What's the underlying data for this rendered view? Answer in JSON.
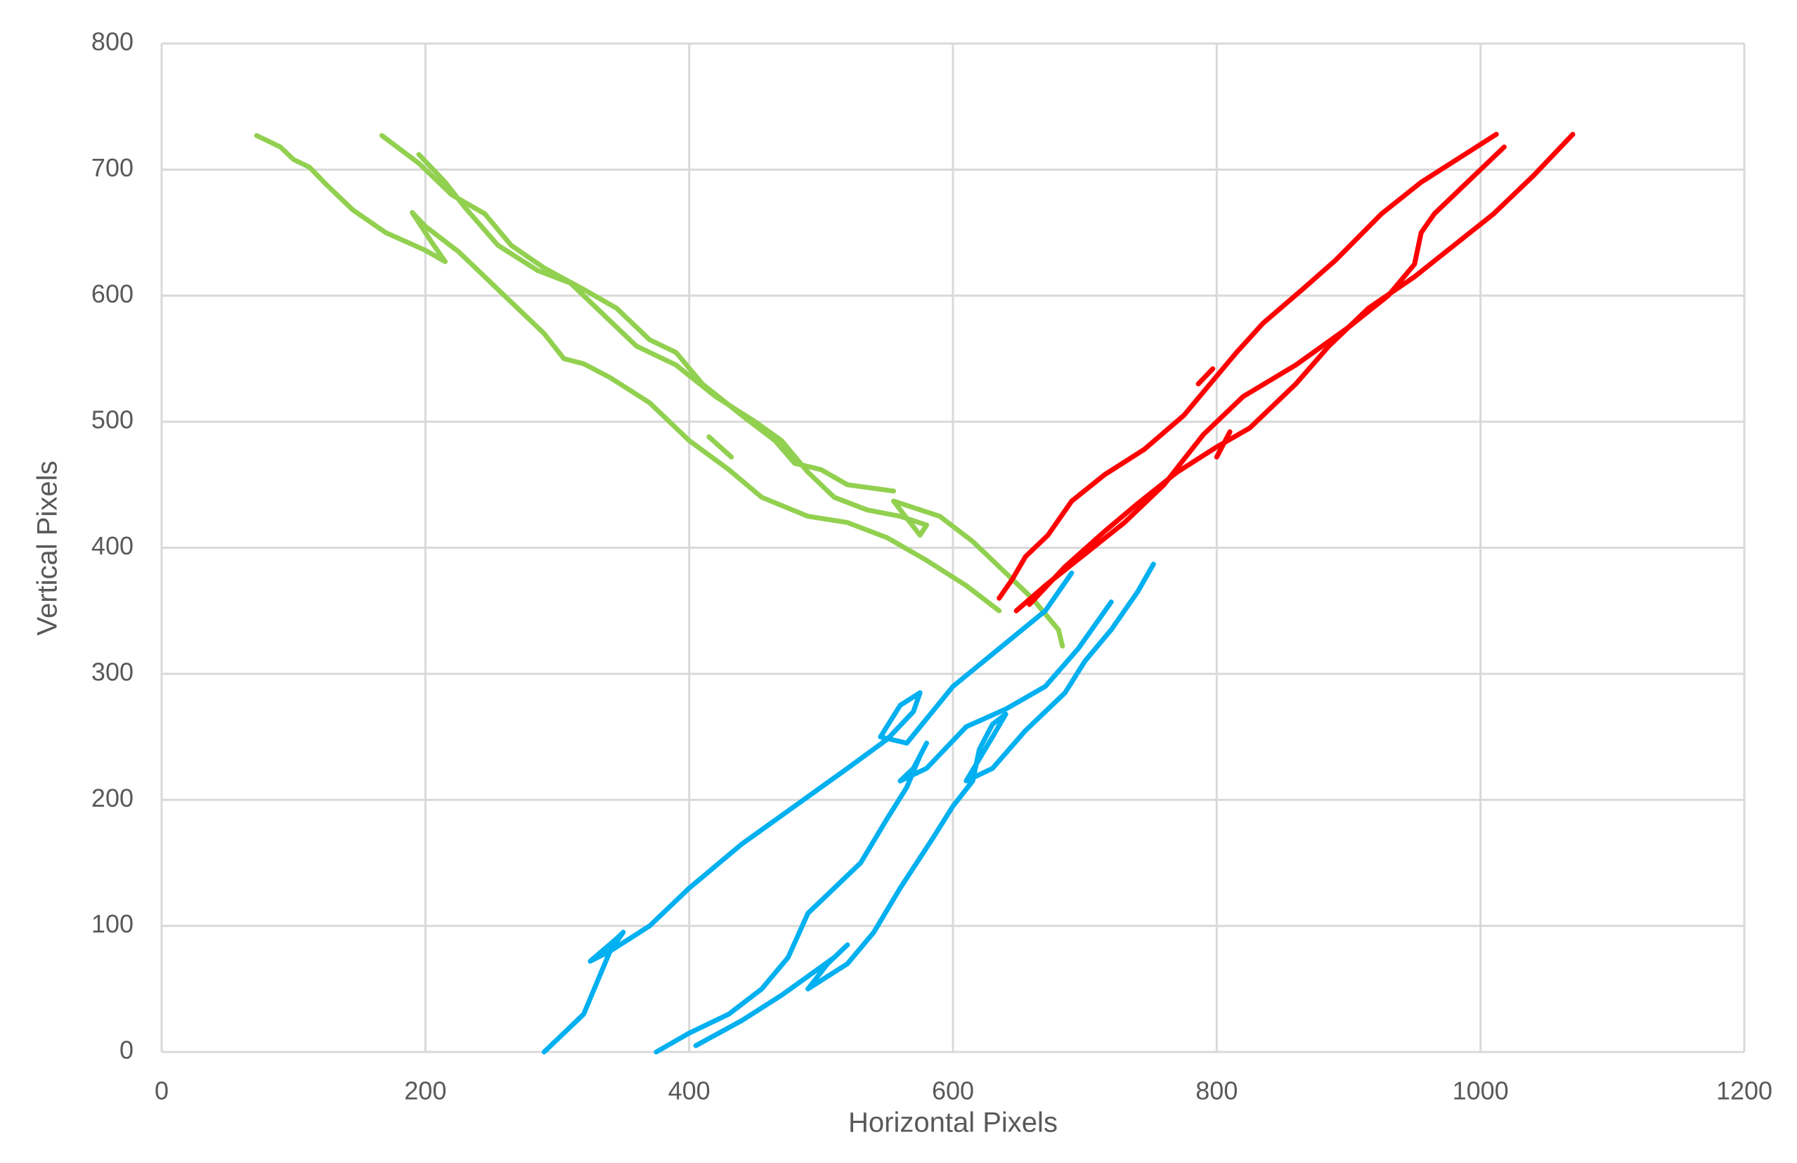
{
  "chart_data": {
    "type": "line",
    "x_label": "Horizontal Pixels",
    "y_label": "Vertical Pixels",
    "xlim": [
      0,
      1200
    ],
    "xticks": [
      0,
      200,
      400,
      600,
      800,
      1000,
      1200
    ],
    "ylim": [
      0,
      800
    ],
    "yticks": [
      0,
      100,
      200,
      300,
      400,
      500,
      600,
      700,
      800
    ],
    "grid": true,
    "series": [
      {
        "color": "#92d050",
        "x": [
          72,
          90,
          100,
          112,
          125,
          145,
          170,
          200,
          215,
          205,
          190,
          200,
          225,
          260,
          290,
          305,
          320,
          340,
          370,
          400,
          430,
          455,
          490,
          520,
          550,
          580,
          610,
          635
        ],
        "values": [
          727,
          718,
          708,
          702,
          688,
          668,
          650,
          636,
          627,
          642,
          666,
          655,
          635,
          600,
          570,
          550,
          546,
          535,
          515,
          485,
          462,
          440,
          425,
          420,
          408,
          390,
          370,
          350
        ]
      },
      {
        "color": "#92d050",
        "x": [
          167,
          195,
          220,
          245,
          265,
          290,
          320,
          345,
          370,
          390,
          410,
          440,
          465,
          480,
          500,
          520,
          555
        ],
        "values": [
          727,
          705,
          680,
          665,
          640,
          622,
          605,
          590,
          565,
          555,
          530,
          505,
          485,
          467,
          462,
          450,
          445
        ]
      },
      {
        "color": "#92d050",
        "x": [
          195,
          215,
          230,
          255,
          285,
          310,
          335,
          360,
          390,
          420,
          450,
          470,
          490,
          510,
          535,
          560,
          580,
          575,
          555,
          590,
          615,
          640,
          660,
          680,
          683
        ],
        "values": [
          712,
          690,
          670,
          640,
          620,
          610,
          585,
          560,
          545,
          520,
          500,
          485,
          460,
          440,
          430,
          425,
          418,
          410,
          437,
          425,
          405,
          380,
          360,
          335,
          322
        ]
      },
      {
        "color": "#92d050",
        "x": [
          415,
          432
        ],
        "values": [
          488,
          472
        ]
      },
      {
        "color": "#ff0000",
        "x": [
          635,
          645,
          655,
          672,
          690,
          715,
          745,
          775,
          795,
          815,
          835,
          865,
          890,
          925,
          955,
          985,
          1012
        ],
        "values": [
          360,
          375,
          393,
          410,
          437,
          458,
          478,
          505,
          530,
          555,
          578,
          605,
          628,
          665,
          690,
          710,
          728
        ]
      },
      {
        "color": "#ff0000",
        "x": [
          648,
          670,
          700,
          730,
          760,
          775,
          790,
          820,
          860,
          900,
          930,
          950,
          955,
          965,
          990,
          1018
        ],
        "values": [
          350,
          370,
          395,
          420,
          450,
          470,
          490,
          520,
          545,
          575,
          600,
          625,
          650,
          665,
          690,
          718
        ]
      },
      {
        "color": "#ff0000",
        "x": [
          658,
          685,
          715,
          740,
          770,
          800,
          825,
          835,
          860,
          885,
          915,
          950,
          980,
          1010,
          1040,
          1070
        ],
        "values": [
          355,
          385,
          413,
          435,
          460,
          480,
          495,
          505,
          530,
          560,
          590,
          615,
          640,
          665,
          695,
          728
        ]
      },
      {
        "color": "#ff0000",
        "x": [
          786,
          797
        ],
        "values": [
          530,
          542
        ]
      },
      {
        "color": "#ff0000",
        "x": [
          800,
          810
        ],
        "values": [
          472,
          492
        ]
      },
      {
        "color": "#00b0f0",
        "x": [
          290,
          305,
          320,
          330,
          340,
          350,
          345,
          325,
          340,
          370,
          400,
          440,
          480,
          520,
          550,
          570,
          575,
          560,
          545,
          565,
          600,
          635,
          670,
          690
        ],
        "values": [
          0,
          15,
          30,
          55,
          80,
          95,
          90,
          72,
          80,
          100,
          130,
          165,
          195,
          225,
          248,
          270,
          285,
          275,
          250,
          245,
          290,
          320,
          350,
          380
        ]
      },
      {
        "color": "#00b0f0",
        "x": [
          375,
          400,
          430,
          455,
          475,
          490,
          510,
          530,
          550,
          565,
          575,
          580,
          570,
          560,
          580,
          610,
          640,
          670,
          695,
          720
        ],
        "values": [
          0,
          15,
          30,
          50,
          75,
          110,
          130,
          150,
          185,
          210,
          235,
          245,
          225,
          215,
          225,
          258,
          272,
          290,
          320,
          357
        ]
      },
      {
        "color": "#00b0f0",
        "x": [
          405,
          440,
          470,
          490,
          510,
          520,
          505,
          490,
          520,
          540,
          560,
          585,
          600,
          615,
          620,
          630,
          640,
          630,
          610,
          630,
          655,
          685,
          700,
          720,
          740,
          752
        ],
        "values": [
          5,
          25,
          45,
          60,
          75,
          85,
          70,
          50,
          70,
          95,
          130,
          170,
          195,
          215,
          240,
          260,
          268,
          250,
          215,
          225,
          255,
          285,
          310,
          335,
          365,
          387
        ]
      }
    ]
  }
}
